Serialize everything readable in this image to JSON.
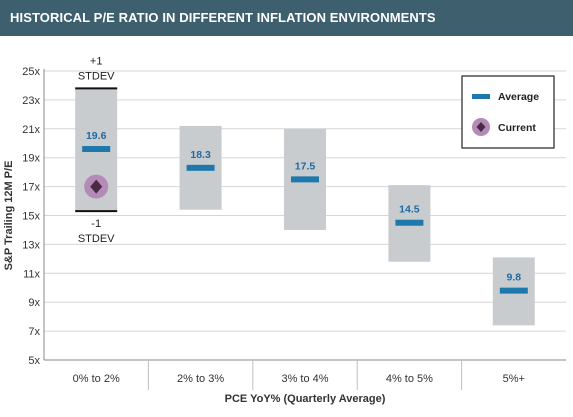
{
  "header": {
    "title": "HISTORICAL P/E RATIO IN DIFFERENT INFLATION ENVIRONMENTS"
  },
  "colors": {
    "header_bg": "#3e5f6e",
    "range_box": "#c9cccf",
    "average_bar": "#1f78ab",
    "average_label": "#1f6aa0",
    "current_ring": "#b48bb8",
    "current_diamond": "#4a2a42"
  },
  "chart_data": {
    "type": "range",
    "title": "HISTORICAL P/E RATIO IN DIFFERENT INFLATION ENVIRONMENTS",
    "xlabel": "PCE YoY% (Quarterly Average)",
    "ylabel": "S&P Trailing 12M P/E",
    "ylim": [
      5,
      25
    ],
    "yticks": [
      5,
      7,
      9,
      11,
      13,
      15,
      17,
      19,
      21,
      23,
      25
    ],
    "ytick_labels": [
      "5x",
      "7x",
      "9x",
      "11x",
      "13x",
      "15x",
      "17x",
      "19x",
      "21x",
      "23x",
      "25x"
    ],
    "categories": [
      "0% to 2%",
      "2% to 3%",
      "3% to 4%",
      "4% to 5%",
      "5%+"
    ],
    "average": [
      19.6,
      18.3,
      17.5,
      14.5,
      9.8
    ],
    "average_labels": [
      "19.6",
      "18.3",
      "17.5",
      "14.5",
      "9.8"
    ],
    "upper_stdev": [
      23.8,
      21.2,
      21.0,
      17.1,
      12.1
    ],
    "lower_stdev": [
      15.3,
      15.4,
      14.0,
      11.8,
      7.4
    ],
    "current": {
      "category_index": 0,
      "value": 17.0
    },
    "annotations": {
      "upper": [
        "+1",
        "STDEV"
      ],
      "lower": [
        "-1",
        "STDEV"
      ]
    },
    "legend": {
      "position": "top-right",
      "items": [
        {
          "kind": "average",
          "label": "Average"
        },
        {
          "kind": "current",
          "label": "Current"
        }
      ]
    }
  }
}
